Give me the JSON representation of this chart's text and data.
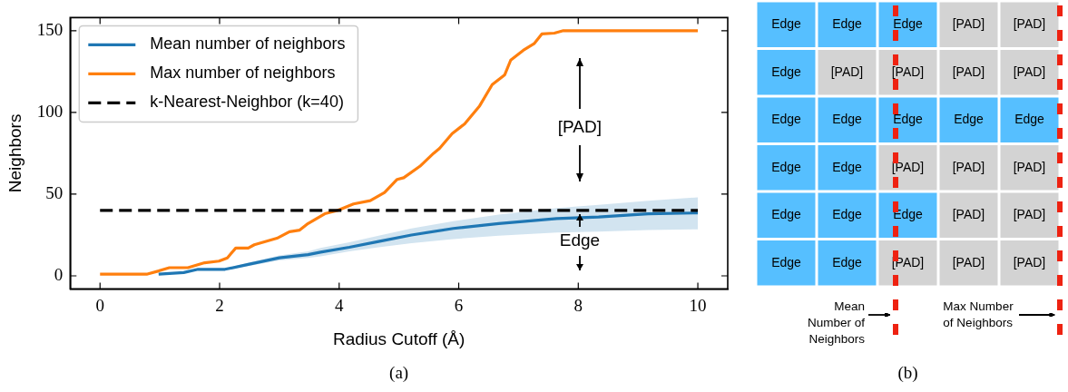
{
  "chart_data": [
    {
      "type": "line",
      "xlabel": "Radius Cutoff (Å)",
      "ylabel": "Neighbors",
      "xlim": [
        -0.5,
        10.5
      ],
      "xticks": [
        0,
        2,
        4,
        6,
        8,
        10
      ],
      "ylim": [
        -8,
        158
      ],
      "yticks": [
        0,
        50,
        100,
        150
      ],
      "legend": "top left",
      "marker": "none",
      "series": [
        {
          "name": "Mean number of neighbors",
          "color": "#1f77b4",
          "x": [
            0,
            0.98,
            1.4,
            1.64,
            2.09,
            2.48,
            3.0,
            3.48,
            3.69,
            4.17,
            4.66,
            5.21,
            5.91,
            6.67,
            7.64,
            8.34,
            9.17,
            10
          ],
          "values": [
            null,
            1,
            2,
            4,
            4,
            7,
            11,
            13,
            14.5,
            17.5,
            21,
            25,
            29,
            32,
            35,
            36,
            38,
            38.5
          ],
          "lower": [
            1,
            1,
            2,
            4,
            3.5,
            6,
            9.5,
            11,
            12,
            15,
            17.5,
            20,
            22.5,
            24.5,
            26.5,
            27,
            28,
            28.5
          ],
          "upper": [
            1,
            1,
            2,
            4,
            4.5,
            8,
            12.5,
            15,
            17,
            20.5,
            24.5,
            29,
            33.5,
            37.5,
            41.5,
            43.5,
            46,
            48
          ]
        },
        {
          "name": "Max number of neighbors",
          "color": "#ff7f0e",
          "x": [
            0,
            0.78,
            0.98,
            1.16,
            1.47,
            1.75,
            1.99,
            2.13,
            2.27,
            2.48,
            2.58,
            2.96,
            3.17,
            3.34,
            3.48,
            3.76,
            3.97,
            4.24,
            4.52,
            4.76,
            4.97,
            5.08,
            5.35,
            5.58,
            5.68,
            5.89,
            6.1,
            6.35,
            6.56,
            6.77,
            6.87,
            7.08,
            7.26,
            7.39,
            7.6,
            7.75,
            10
          ],
          "values": [
            1,
            1,
            3,
            5,
            5,
            8,
            9,
            11,
            17,
            17,
            19,
            23,
            27,
            28,
            32,
            38,
            40,
            44,
            46,
            51,
            59,
            60,
            67,
            75,
            78,
            87,
            93,
            104,
            117,
            123,
            132,
            138,
            142,
            148,
            148.5,
            150,
            150
          ]
        },
        {
          "name": "k-Nearest-Neighbor (k=40)",
          "color": "#000000",
          "line_style": "dashed",
          "x": [
            0,
            10
          ],
          "values": [
            40,
            40
          ]
        }
      ],
      "annotations": [
        "[PAD]",
        "Edge",
        "(a)"
      ]
    },
    {
      "type": "heatmap",
      "categories": [
        null,
        null,
        null,
        null,
        null
      ],
      "y_categories": [
        null,
        null,
        null,
        null,
        null,
        null
      ],
      "colors": [
        [
          "#56bfff",
          "#56bfff",
          "#56bfff",
          "#d3d3d3",
          "#d3d3d3"
        ],
        [
          "#56bfff",
          "#d3d3d3",
          "#d3d3d3",
          "#d3d3d3",
          "#d3d3d3"
        ],
        [
          "#56bfff",
          "#56bfff",
          "#56bfff",
          "#56bfff",
          "#56bfff"
        ],
        [
          "#56bfff",
          "#56bfff",
          "#d3d3d3",
          "#d3d3d3",
          "#d3d3d3"
        ],
        [
          "#56bfff",
          "#56bfff",
          "#56bfff",
          "#d3d3d3",
          "#d3d3d3"
        ],
        [
          "#56bfff",
          "#56bfff",
          "#d3d3d3",
          "#d3d3d3",
          "#d3d3d3"
        ]
      ],
      "cells": [
        [
          "Edge",
          "Edge",
          "Edge",
          "[PAD]",
          "[PAD]"
        ],
        [
          "Edge",
          "[PAD]",
          "[PAD]",
          "[PAD]",
          "[PAD]"
        ],
        [
          "Edge",
          "Edge",
          "Edge",
          "Edge",
          "Edge"
        ],
        [
          "Edge",
          "Edge",
          "[PAD]",
          "[PAD]",
          "[PAD]"
        ],
        [
          "Edge",
          "Edge",
          "Edge",
          "[PAD]",
          "[PAD]"
        ],
        [
          "Edge",
          "Edge",
          "[PAD]",
          "[PAD]",
          "[PAD]"
        ]
      ],
      "annotations": [
        "Mean Number of Neighbors",
        "Max Number of Neighbors",
        "(b)"
      ]
    }
  ]
}
